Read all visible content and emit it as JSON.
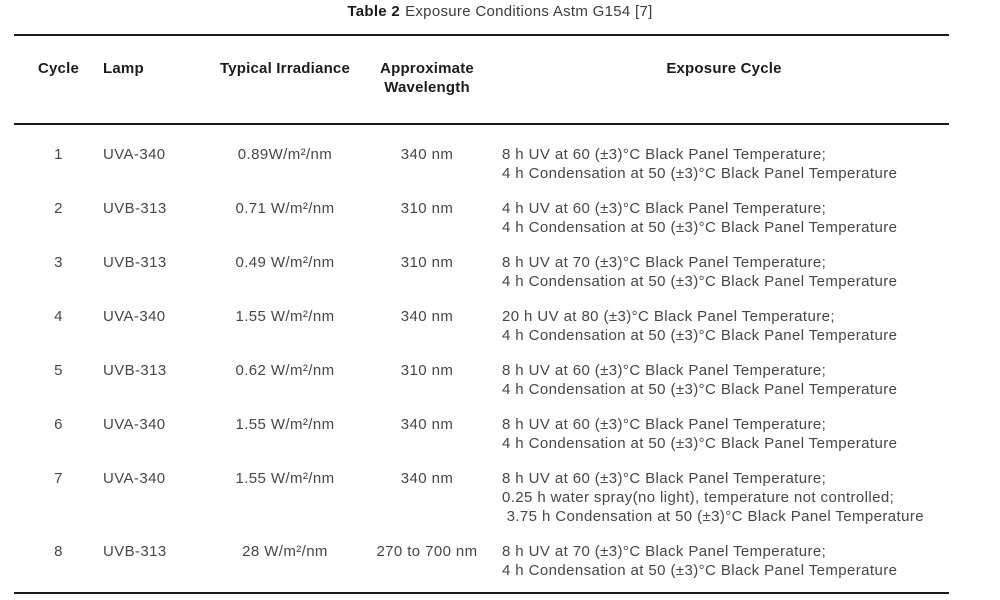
{
  "caption": {
    "label": "Table 2",
    "text": "Exposure Conditions Astm G154 [7]"
  },
  "table": {
    "headers": {
      "cycle": "Cycle",
      "lamp": "Lamp",
      "irradiance": "Typical Irradiance",
      "wavelength": "Approximate\nWavelength",
      "exposure": "Exposure Cycle"
    },
    "rows": [
      {
        "cycle": "1",
        "lamp": "UVA-340",
        "irradiance": "0.89W/m²/nm",
        "wavelength": "340 nm",
        "exposure": "8 h UV at 60 (±3)°C Black Panel Temperature;\n4 h Condensation at 50 (±3)°C Black Panel Temperature"
      },
      {
        "cycle": "2",
        "lamp": "UVB-313",
        "irradiance": "0.71 W/m²/nm",
        "wavelength": "310 nm",
        "exposure": "4 h UV at 60 (±3)°C Black Panel Temperature;\n4 h Condensation at 50 (±3)°C Black Panel Temperature"
      },
      {
        "cycle": "3",
        "lamp": "UVB-313",
        "irradiance": "0.49 W/m²/nm",
        "wavelength": "310 nm",
        "exposure": "8 h UV at 70 (±3)°C Black Panel Temperature;\n4 h Condensation at 50 (±3)°C Black Panel Temperature"
      },
      {
        "cycle": "4",
        "lamp": "UVA-340",
        "irradiance": "1.55 W/m²/nm",
        "wavelength": "340 nm",
        "exposure": "20 h UV at 80 (±3)°C Black Panel Temperature;\n4 h Condensation at 50 (±3)°C Black Panel Temperature"
      },
      {
        "cycle": "5",
        "lamp": "UVB-313",
        "irradiance": "0.62 W/m²/nm",
        "wavelength": "310 nm",
        "exposure": "8 h UV at 60 (±3)°C Black Panel Temperature;\n4 h Condensation at 50 (±3)°C Black Panel Temperature"
      },
      {
        "cycle": "6",
        "lamp": "UVA-340",
        "irradiance": "1.55 W/m²/nm",
        "wavelength": "340 nm",
        "exposure": "8 h UV at 60 (±3)°C Black Panel Temperature;\n4 h Condensation at 50 (±3)°C Black Panel Temperature"
      },
      {
        "cycle": "7",
        "lamp": "UVA-340",
        "irradiance": "1.55 W/m²/nm",
        "wavelength": "340 nm",
        "exposure": "8 h UV at 60 (±3)°C Black Panel Temperature;\n0.25 h water spray(no light), temperature not controlled;\n 3.75 h Condensation at 50 (±3)°C Black Panel Temperature"
      },
      {
        "cycle": "8",
        "lamp": "UVB-313",
        "irradiance": "28 W/m²/nm",
        "wavelength": "270 to 700 nm",
        "exposure": "8 h UV at 70 (±3)°C Black Panel Temperature;\n4 h Condensation at 50 (±3)°C Black Panel Temperature"
      }
    ]
  },
  "colors": {
    "background": "#ffffff",
    "body_text": "#474747",
    "heading_text": "#1c1c1c",
    "rule": "#1c1c1c"
  }
}
